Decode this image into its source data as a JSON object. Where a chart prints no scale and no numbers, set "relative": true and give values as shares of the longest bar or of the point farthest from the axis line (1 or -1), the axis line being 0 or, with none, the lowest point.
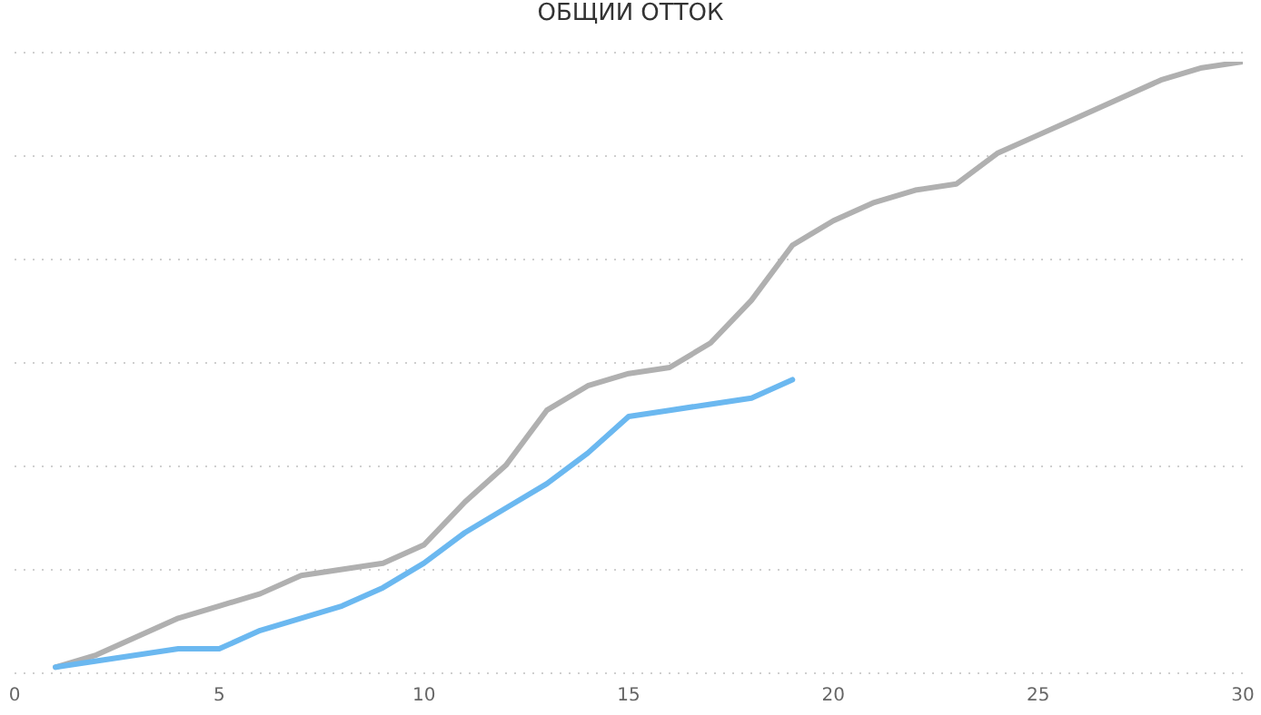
{
  "chart_data": {
    "type": "line",
    "title": "ОБЩИИ ОТТОК",
    "relative": true,
    "grid": "y",
    "xlim": [
      0,
      30
    ],
    "xticks": [
      0,
      5,
      10,
      15,
      20,
      25,
      30
    ],
    "x": [
      1,
      2,
      3,
      4,
      5,
      6,
      7,
      8,
      9,
      10,
      11,
      12,
      13,
      14,
      15,
      16,
      17,
      18,
      19,
      20,
      21,
      22,
      23,
      24,
      25,
      26,
      27,
      28,
      29,
      30
    ],
    "series": [
      {
        "color": "#b0b0b0",
        "values": [
          0.01,
          0.03,
          0.06,
          0.09,
          0.11,
          0.13,
          0.16,
          0.17,
          0.18,
          0.21,
          0.28,
          0.34,
          0.43,
          0.47,
          0.49,
          0.5,
          0.54,
          0.61,
          0.7,
          0.74,
          0.77,
          0.79,
          0.8,
          0.85,
          0.88,
          0.91,
          0.94,
          0.97,
          0.99,
          1
        ]
      },
      {
        "color": "#6bb8f0",
        "values": [
          0.01,
          0.02,
          0.03,
          0.04,
          0.04,
          0.07,
          0.09,
          0.11,
          0.14,
          0.18,
          0.23,
          0.27,
          0.31,
          0.36,
          0.42,
          0.43,
          0.44,
          0.45,
          0.48,
          null,
          null,
          null,
          null,
          null,
          null,
          null,
          null,
          null,
          null,
          null
        ]
      }
    ]
  }
}
